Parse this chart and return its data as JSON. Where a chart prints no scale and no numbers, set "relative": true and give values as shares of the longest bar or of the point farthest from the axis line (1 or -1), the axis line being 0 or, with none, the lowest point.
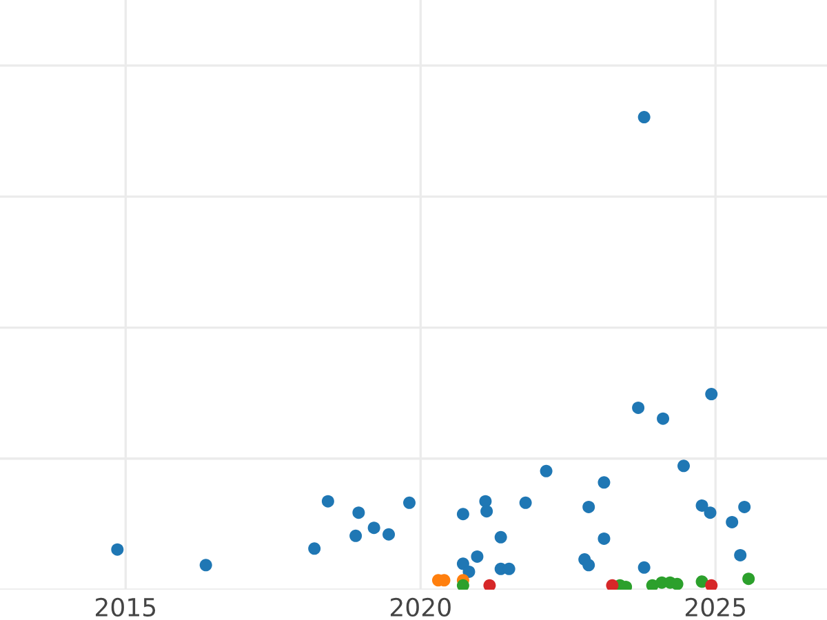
{
  "chart_data": {
    "type": "scatter",
    "relative": true,
    "grid": true,
    "marker": "circle",
    "xlim": [
      2012.87,
      2026.89
    ],
    "xticks": [
      2015,
      2020,
      2025
    ],
    "series": [
      {
        "color": "#1f77b4",
        "x": [
          2014.86,
          2016.36,
          2018.2,
          2018.43,
          2018.9,
          2018.95,
          2019.21,
          2019.46,
          2019.81,
          2020.72,
          2020.72,
          2020.82,
          2020.96,
          2021.1,
          2021.12,
          2021.36,
          2021.36,
          2021.5,
          2021.78,
          2022.13,
          2022.78,
          2022.85,
          2022.85,
          2023.11,
          2023.11,
          2023.79,
          2023.69,
          2023.79,
          2024.11,
          2024.46,
          2024.77,
          2024.91,
          2024.93,
          2025.28,
          2025.42,
          2025.49
        ],
        "values": [
          0.085,
          0.052,
          0.087,
          0.187,
          0.114,
          0.163,
          0.131,
          0.117,
          0.184,
          0.16,
          0.055,
          0.038,
          0.07,
          0.187,
          0.166,
          0.111,
          0.044,
          0.044,
          0.184,
          0.251,
          0.064,
          0.052,
          0.175,
          0.227,
          0.108,
          1,
          0.385,
          0.047,
          0.362,
          0.262,
          0.178,
          0.163,
          0.414,
          0.143,
          0.073,
          0.175
        ]
      },
      {
        "color": "#ff7f0e",
        "x": [
          2020.3,
          2020.4,
          2020.72
        ],
        "values": [
          0.02,
          0.02,
          0.02
        ]
      },
      {
        "color": "#2ca02c",
        "x": [
          2020.72,
          2023.38,
          2023.48,
          2023.93,
          2024.09,
          2024.23,
          2024.35,
          2024.77,
          2025.56
        ],
        "values": [
          0.009,
          0.009,
          0.006,
          0.009,
          0.015,
          0.015,
          0.012,
          0.017,
          0.023
        ]
      },
      {
        "color": "#d62728",
        "x": [
          2021.17,
          2023.25,
          2024.93
        ],
        "values": [
          0.009,
          0.009,
          0.009
        ]
      }
    ]
  }
}
